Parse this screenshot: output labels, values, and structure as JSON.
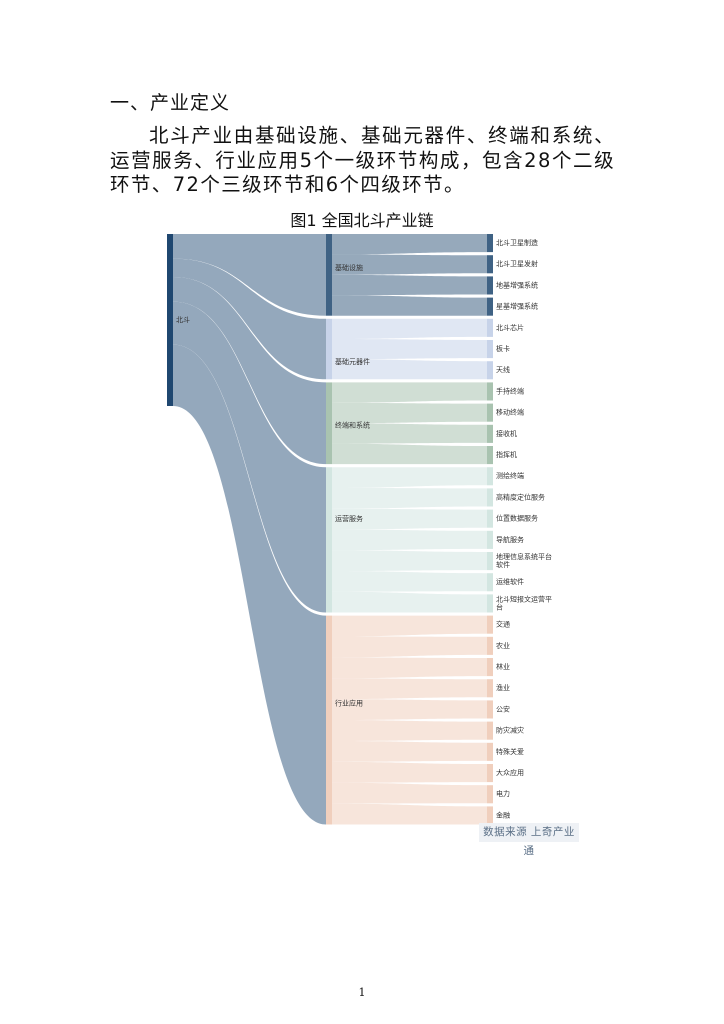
{
  "document": {
    "heading": "一、产业定义",
    "paragraph": "北斗产业由基础设施、基础元器件、终端和系统、运营服务、行业应用5个一级环节构成，包含28个二级环节、72个三级环节和6个四级环节。",
    "figure_title": "图1 全国北斗产业链",
    "source_note": "数据来源 上奇产业通",
    "page_number": "1"
  },
  "chart_data": {
    "type": "sankey",
    "root": "北斗",
    "colors": {
      "root": "#1f4770",
      "flow_root": "#8ea3b8",
      "基础设施": "#3f6284",
      "基础元器件": "#c7d3e9",
      "终端和系统": "#a9c3b0",
      "运营服务": "#d3e6e1",
      "行业应用": "#f0cfbd"
    },
    "categories": [
      {
        "name": "基础设施",
        "children": [
          "北斗卫星制造",
          "北斗卫星发射",
          "地基增强系统",
          "星基增强系统"
        ]
      },
      {
        "name": "基础元器件",
        "children": [
          "北斗芯片",
          "板卡",
          "天线"
        ]
      },
      {
        "name": "终端和系统",
        "children": [
          "手持终端",
          "移动终端",
          "接收机",
          "指挥机"
        ]
      },
      {
        "name": "运营服务",
        "children": [
          "测绘终端",
          "高精度定位服务",
          "位置数据服务",
          "导航服务",
          "地理信息系统平台软件",
          "运维软件",
          "北斗短报文运营平台"
        ]
      },
      {
        "name": "行业应用",
        "children": [
          "交通",
          "农业",
          "林业",
          "渔业",
          "公安",
          "防灾减灾",
          "特殊关爱",
          "大众应用",
          "电力",
          "金融"
        ]
      }
    ]
  }
}
